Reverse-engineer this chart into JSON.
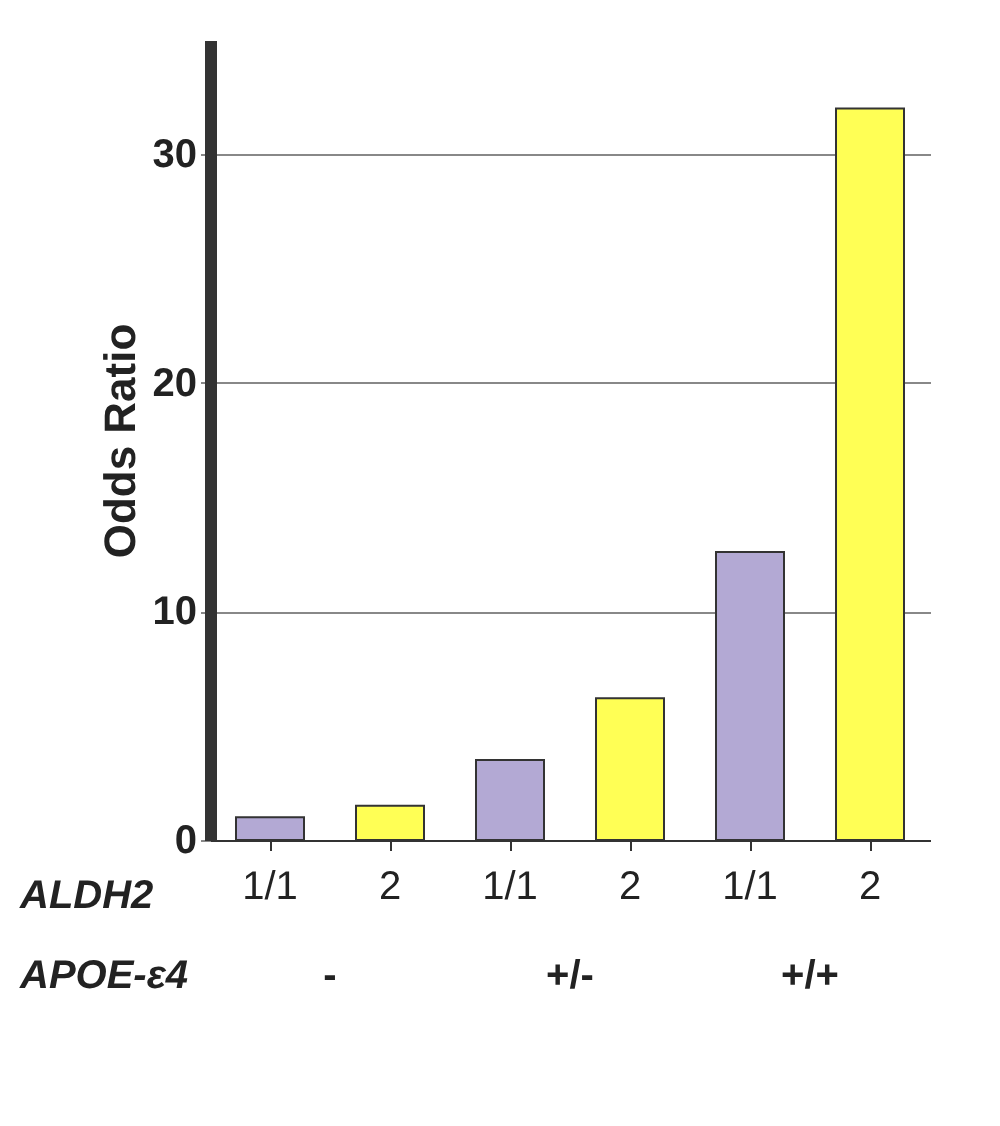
{
  "chart_data": {
    "type": "bar",
    "ylabel": "Odds Ratio",
    "categories": [
      "1/1",
      "2",
      "1/1",
      "2",
      "1/1",
      "2"
    ],
    "values": [
      1.0,
      1.5,
      3.5,
      6.2,
      12.6,
      32.0
    ],
    "colors": [
      "#b3a9d4",
      "#ffff55",
      "#b3a9d4",
      "#ffff55",
      "#b3a9d4",
      "#ffff55"
    ],
    "ylim": [
      0,
      35
    ],
    "yticks": [
      0,
      10,
      20,
      30
    ],
    "grid": "y",
    "annotations": [
      "ALDH2",
      "APOE-ε4",
      "-",
      "+/-",
      "+/+"
    ]
  }
}
